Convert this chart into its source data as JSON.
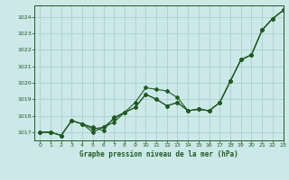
{
  "title": "Graphe pression niveau de la mer (hPa)",
  "bg_color": "#cce8e8",
  "grid_color": "#aacfcf",
  "line_color": "#1e5c1e",
  "xlim": [
    -0.5,
    23
  ],
  "ylim": [
    1016.5,
    1024.7
  ],
  "xtick_labels": [
    "0",
    "1",
    "2",
    "3",
    "4",
    "5",
    "6",
    "7",
    "8",
    "9",
    "10",
    "11",
    "12",
    "13",
    "14",
    "15",
    "16",
    "17",
    "18",
    "19",
    "20",
    "21",
    "22",
    "23"
  ],
  "yticks": [
    1017,
    1018,
    1019,
    1020,
    1021,
    1022,
    1023,
    1024
  ],
  "s1": [
    1017.0,
    1017.0,
    1016.8,
    1017.7,
    1017.5,
    1017.3,
    1017.1,
    1017.9,
    1018.2,
    1018.8,
    1019.7,
    1019.6,
    1019.5,
    1019.1,
    1018.3,
    1018.4,
    1018.3,
    1018.8,
    1020.1,
    1021.4,
    1021.7,
    1023.2,
    1023.9,
    1024.4
  ],
  "s2": [
    1017.0,
    1017.0,
    1016.8,
    1017.7,
    1017.5,
    1017.2,
    1017.3,
    1017.6,
    1018.2,
    1018.5,
    1019.3,
    1019.0,
    1018.6,
    1018.8,
    1018.3,
    1018.4,
    1018.3,
    1018.8,
    1020.1,
    1021.4,
    1021.7,
    1023.2,
    1023.9,
    1024.4
  ],
  "s3": [
    1017.0,
    1017.0,
    1016.8,
    1017.7,
    1017.5,
    1017.0,
    1017.3,
    1017.8,
    1018.2,
    1018.5,
    1019.3,
    1019.0,
    1018.6,
    1018.8,
    1018.3,
    1018.4,
    1018.3,
    1018.8,
    1020.1,
    1021.4,
    1021.7,
    1023.2,
    1023.9,
    1024.4
  ],
  "figsize": [
    3.2,
    2.0
  ],
  "dpi": 100
}
